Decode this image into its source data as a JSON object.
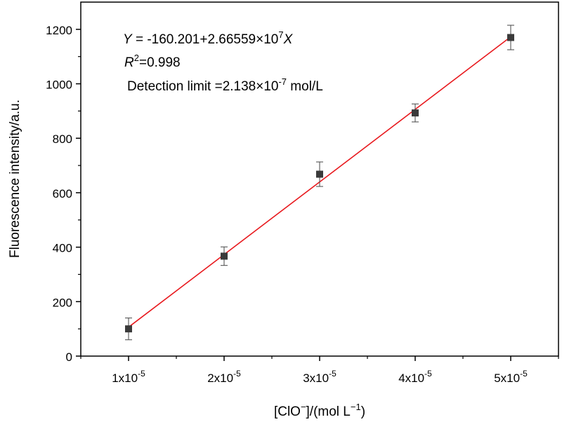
{
  "chart_data": {
    "type": "scatter",
    "grid": false,
    "xlim": [
      5e-06,
      5.5e-05
    ],
    "ylim": [
      0,
      1300
    ],
    "x_ticks": [
      {
        "value": 1e-05,
        "mantissa": "1x10",
        "exp": "-5"
      },
      {
        "value": 2e-05,
        "mantissa": "2x10",
        "exp": "-5"
      },
      {
        "value": 3e-05,
        "mantissa": "3x10",
        "exp": "-5"
      },
      {
        "value": 4e-05,
        "mantissa": "4x10",
        "exp": "-5"
      },
      {
        "value": 5e-05,
        "mantissa": "5x10",
        "exp": "-5"
      }
    ],
    "y_ticks": [
      0,
      200,
      400,
      600,
      800,
      1000,
      1200
    ],
    "xlabel": {
      "part1": "[ClO",
      "sup1": "−",
      "part2": "]/(mol  L",
      "sup2": "−1",
      "part3": ")"
    },
    "ylabel": "Fluorescence intensity/a.u.",
    "points": [
      {
        "x": 1e-05,
        "y": 100,
        "err": 40
      },
      {
        "x": 2e-05,
        "y": 367,
        "err": 34
      },
      {
        "x": 3e-05,
        "y": 668,
        "err": 45
      },
      {
        "x": 4e-05,
        "y": 893,
        "err": 33
      },
      {
        "x": 5e-05,
        "y": 1170,
        "err": 45
      }
    ],
    "fit": {
      "intercept": -160.201,
      "slope": 26655900.0,
      "x_range": [
        1e-05,
        5e-05
      ],
      "color": "#e8191e"
    },
    "annotations": {
      "equation": {
        "y_var": "Y",
        "part1": " = -160.201+2.66559×10",
        "sup": "7",
        "x_var": "X"
      },
      "r2": {
        "var": "R",
        "sup": "2",
        "value": "=0.998"
      },
      "detection": {
        "part1": "Detection limit =2.138×10",
        "sup": "-7",
        "part2": " mol/L"
      }
    },
    "marker_color": "#3a3a3a",
    "error_bar_color": "#555555"
  }
}
